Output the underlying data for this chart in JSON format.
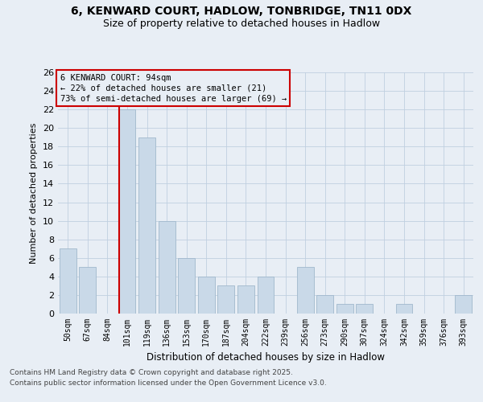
{
  "title": "6, KENWARD COURT, HADLOW, TONBRIDGE, TN11 0DX",
  "subtitle": "Size of property relative to detached houses in Hadlow",
  "xlabel": "Distribution of detached houses by size in Hadlow",
  "ylabel": "Number of detached properties",
  "categories": [
    "50sqm",
    "67sqm",
    "84sqm",
    "101sqm",
    "119sqm",
    "136sqm",
    "153sqm",
    "170sqm",
    "187sqm",
    "204sqm",
    "222sqm",
    "239sqm",
    "256sqm",
    "273sqm",
    "290sqm",
    "307sqm",
    "324sqm",
    "342sqm",
    "359sqm",
    "376sqm",
    "393sqm"
  ],
  "values": [
    7,
    5,
    0,
    22,
    19,
    10,
    6,
    4,
    3,
    3,
    4,
    0,
    5,
    2,
    1,
    1,
    0,
    1,
    0,
    0,
    2
  ],
  "bar_color": "#c9d9e8",
  "bar_edgecolor": "#a0b8cc",
  "vline_index": 3,
  "annotation_box_text": "6 KENWARD COURT: 94sqm\n← 22% of detached houses are smaller (21)\n73% of semi-detached houses are larger (69) →",
  "annotation_box_color": "#cc0000",
  "vline_color": "#cc0000",
  "grid_color": "#c0cfe0",
  "bg_color": "#e8eef5",
  "footer_line1": "Contains HM Land Registry data © Crown copyright and database right 2025.",
  "footer_line2": "Contains public sector information licensed under the Open Government Licence v3.0.",
  "ylim": [
    0,
    26
  ],
  "yticks": [
    0,
    2,
    4,
    6,
    8,
    10,
    12,
    14,
    16,
    18,
    20,
    22,
    24,
    26
  ]
}
